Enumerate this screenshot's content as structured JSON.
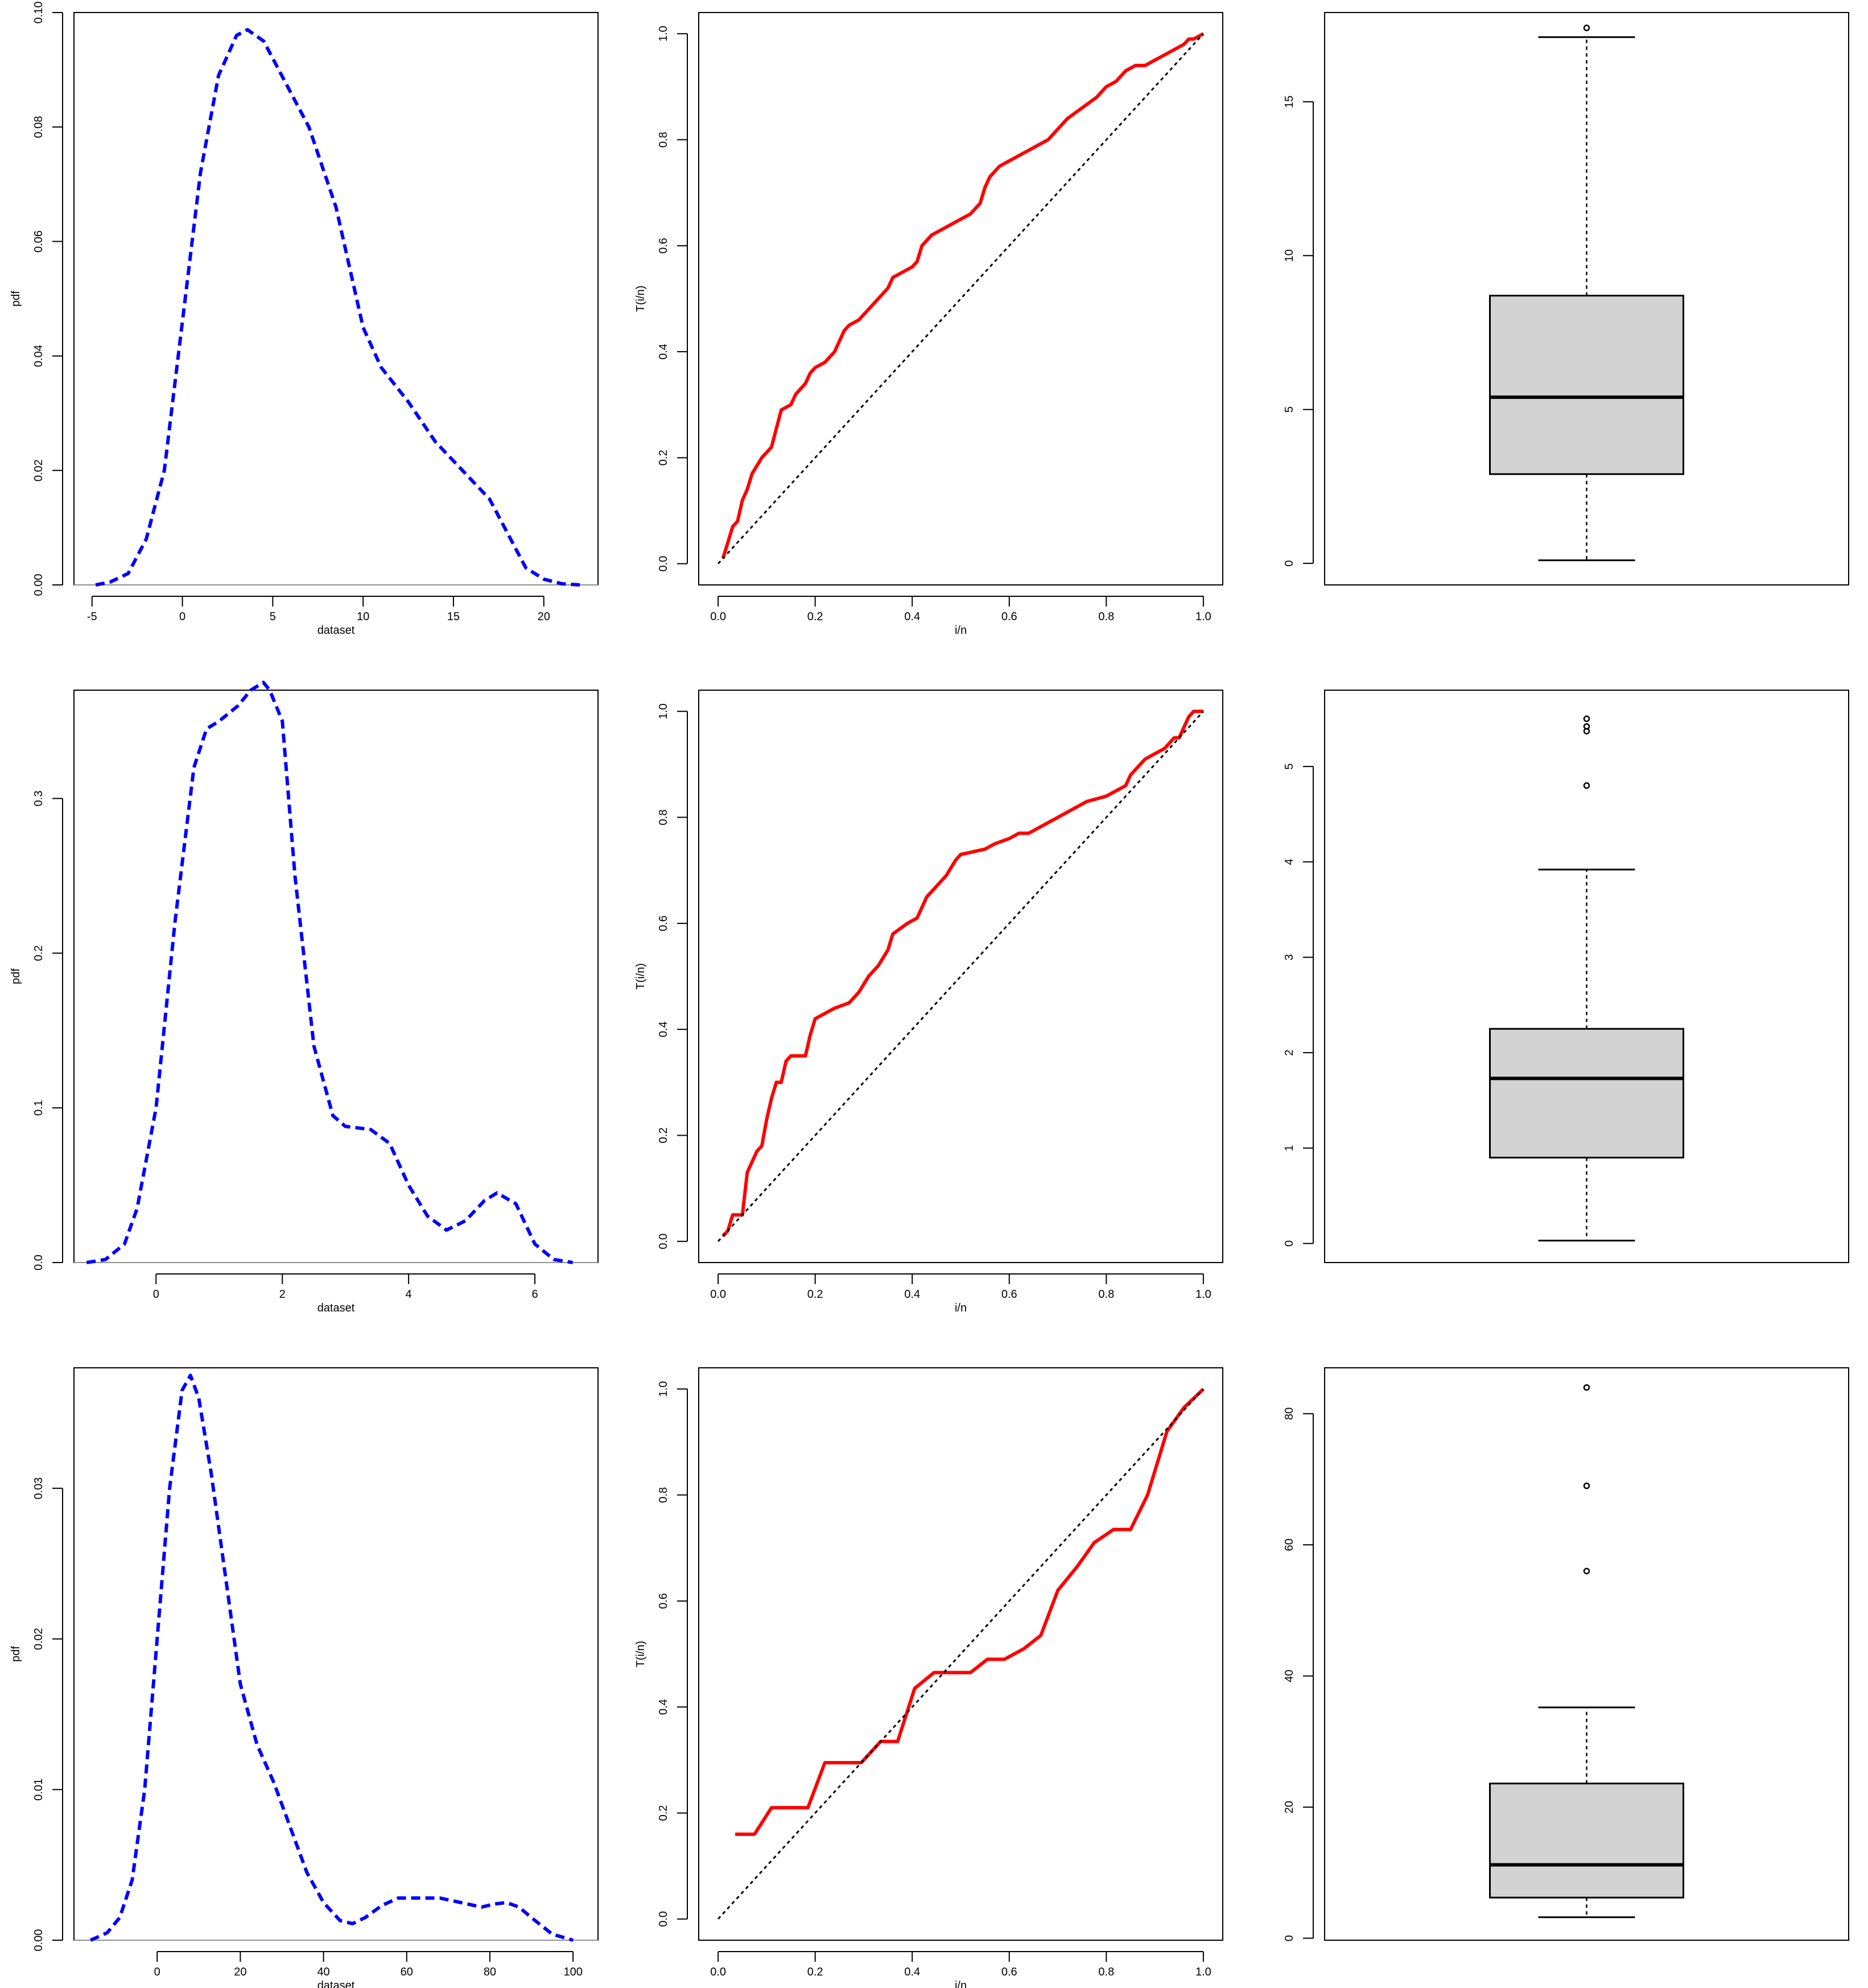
{
  "figure": {
    "layout": "3x3 grid of base-R plots"
  },
  "chart_data": [
    {
      "type": "line",
      "row": 0,
      "col": 0,
      "xlabel": "dataset",
      "ylabel": "pdf",
      "xlim": [
        -6,
        23
      ],
      "ylim": [
        0,
        0.1
      ],
      "xticks": [
        -5,
        0,
        5,
        10,
        15,
        20
      ],
      "xtick_labels": [
        "-5",
        "0",
        "5",
        "10",
        "15",
        "20"
      ],
      "yticks": [
        0,
        0.02,
        0.04,
        0.06,
        0.08,
        0.1
      ],
      "ytick_labels": [
        "0.00",
        "0.02",
        "0.04",
        "0.06",
        "0.08",
        "0.10"
      ],
      "baseline": 0,
      "series": [
        {
          "style": "dashed",
          "color": "#0000ff",
          "x": [
            -4.8,
            -4,
            -3,
            -2,
            -1,
            0,
            1,
            2,
            3,
            3.6,
            4.5,
            5.5,
            7,
            8.5,
            10,
            11,
            12.5,
            14,
            15.5,
            17,
            18,
            19,
            20,
            21,
            22
          ],
          "y": [
            0,
            0.0005,
            0.002,
            0.008,
            0.02,
            0.046,
            0.072,
            0.089,
            0.096,
            0.097,
            0.095,
            0.089,
            0.08,
            0.066,
            0.045,
            0.038,
            0.032,
            0.025,
            0.02,
            0.015,
            0.009,
            0.003,
            0.001,
            0.0002,
            0
          ]
        }
      ]
    },
    {
      "type": "line",
      "row": 0,
      "col": 1,
      "xlabel": "i/n",
      "ylabel": "T(i/n)",
      "xlim": [
        -0.04,
        1.04
      ],
      "ylim": [
        -0.04,
        1.04
      ],
      "xticks": [
        0,
        0.2,
        0.4,
        0.6,
        0.8,
        1.0
      ],
      "xtick_labels": [
        "0.0",
        "0.2",
        "0.4",
        "0.6",
        "0.8",
        "1.0"
      ],
      "yticks": [
        0,
        0.2,
        0.4,
        0.6,
        0.8,
        1.0
      ],
      "ytick_labels": [
        "0.0",
        "0.2",
        "0.4",
        "0.6",
        "0.8",
        "1.0"
      ],
      "series": [
        {
          "style": "solid",
          "color": "#ff0000",
          "x": [
            0.01,
            0.02,
            0.03,
            0.04,
            0.05,
            0.06,
            0.07,
            0.09,
            0.11,
            0.13,
            0.15,
            0.16,
            0.18,
            0.19,
            0.2,
            0.22,
            0.24,
            0.26,
            0.27,
            0.29,
            0.31,
            0.33,
            0.35,
            0.36,
            0.38,
            0.4,
            0.41,
            0.42,
            0.44,
            0.46,
            0.48,
            0.5,
            0.52,
            0.54,
            0.55,
            0.56,
            0.58,
            0.6,
            0.62,
            0.64,
            0.66,
            0.68,
            0.7,
            0.72,
            0.75,
            0.78,
            0.8,
            0.82,
            0.84,
            0.86,
            0.88,
            0.9,
            0.92,
            0.94,
            0.96,
            0.97,
            0.98,
            1.0
          ],
          "y": [
            0.01,
            0.04,
            0.07,
            0.08,
            0.12,
            0.14,
            0.17,
            0.2,
            0.22,
            0.29,
            0.3,
            0.32,
            0.34,
            0.36,
            0.37,
            0.38,
            0.4,
            0.44,
            0.45,
            0.46,
            0.48,
            0.5,
            0.52,
            0.54,
            0.55,
            0.56,
            0.57,
            0.6,
            0.62,
            0.63,
            0.64,
            0.65,
            0.66,
            0.68,
            0.71,
            0.73,
            0.75,
            0.76,
            0.77,
            0.78,
            0.79,
            0.8,
            0.82,
            0.84,
            0.86,
            0.88,
            0.9,
            0.91,
            0.93,
            0.94,
            0.94,
            0.95,
            0.96,
            0.97,
            0.98,
            0.99,
            0.99,
            1.0
          ]
        },
        {
          "style": "dotted",
          "color": "#000000",
          "x": [
            0,
            1
          ],
          "y": [
            0,
            1
          ]
        }
      ]
    },
    {
      "type": "box",
      "row": 0,
      "col": 2,
      "xlabel": "",
      "ylabel": "",
      "ylim": [
        -0.7,
        17.9
      ],
      "yticks": [
        0,
        5,
        10,
        15
      ],
      "ytick_labels": [
        "0",
        "5",
        "10",
        "15"
      ],
      "box": {
        "min": 0.1,
        "q1": 2.9,
        "median": 5.4,
        "q3": 8.7,
        "max": 17.1,
        "outliers": [
          17.4
        ],
        "fill": "#d3d3d3"
      }
    },
    {
      "type": "line",
      "row": 1,
      "col": 0,
      "xlabel": "dataset",
      "ylabel": "pdf",
      "xlim": [
        -1.3,
        7
      ],
      "ylim": [
        0,
        0.37
      ],
      "xticks": [
        0,
        2,
        4,
        6
      ],
      "xtick_labels": [
        "0",
        "2",
        "4",
        "6"
      ],
      "yticks": [
        0,
        0.1,
        0.2,
        0.3
      ],
      "ytick_labels": [
        "0.0",
        "0.1",
        "0.2",
        "0.3"
      ],
      "baseline": 0,
      "series": [
        {
          "style": "dashed",
          "color": "#0000ff",
          "x": [
            -1.1,
            -0.8,
            -0.5,
            -0.3,
            0,
            0.3,
            0.6,
            0.8,
            1,
            1.3,
            1.5,
            1.7,
            1.8,
            2,
            2.2,
            2.5,
            2.8,
            3,
            3.4,
            3.7,
            4,
            4.3,
            4.6,
            4.9,
            5.2,
            5.4,
            5.7,
            6,
            6.3,
            6.6
          ],
          "y": [
            0,
            0.002,
            0.012,
            0.035,
            0.1,
            0.22,
            0.32,
            0.345,
            0.35,
            0.36,
            0.37,
            0.375,
            0.37,
            0.35,
            0.25,
            0.14,
            0.095,
            0.088,
            0.086,
            0.077,
            0.05,
            0.03,
            0.021,
            0.027,
            0.04,
            0.045,
            0.038,
            0.012,
            0.002,
            0
          ]
        }
      ]
    },
    {
      "type": "line",
      "row": 1,
      "col": 1,
      "xlabel": "i/n",
      "ylabel": "T(i/n)",
      "xlim": [
        -0.04,
        1.04
      ],
      "ylim": [
        -0.04,
        1.04
      ],
      "xticks": [
        0,
        0.2,
        0.4,
        0.6,
        0.8,
        1.0
      ],
      "xtick_labels": [
        "0.0",
        "0.2",
        "0.4",
        "0.6",
        "0.8",
        "1.0"
      ],
      "yticks": [
        0,
        0.2,
        0.4,
        0.6,
        0.8,
        1.0
      ],
      "ytick_labels": [
        "0.0",
        "0.2",
        "0.4",
        "0.6",
        "0.8",
        "1.0"
      ],
      "series": [
        {
          "style": "solid",
          "color": "#ff0000",
          "x": [
            0.01,
            0.02,
            0.03,
            0.05,
            0.06,
            0.07,
            0.08,
            0.09,
            0.1,
            0.11,
            0.12,
            0.13,
            0.14,
            0.15,
            0.18,
            0.19,
            0.2,
            0.22,
            0.24,
            0.27,
            0.29,
            0.31,
            0.33,
            0.35,
            0.36,
            0.39,
            0.41,
            0.42,
            0.43,
            0.45,
            0.47,
            0.49,
            0.5,
            0.55,
            0.57,
            0.6,
            0.62,
            0.64,
            0.66,
            0.68,
            0.7,
            0.72,
            0.74,
            0.76,
            0.8,
            0.82,
            0.84,
            0.85,
            0.87,
            0.88,
            0.9,
            0.92,
            0.94,
            0.95,
            0.96,
            0.97,
            0.98,
            1.0
          ],
          "y": [
            0.01,
            0.02,
            0.05,
            0.05,
            0.13,
            0.15,
            0.17,
            0.18,
            0.23,
            0.27,
            0.3,
            0.3,
            0.34,
            0.35,
            0.35,
            0.39,
            0.42,
            0.43,
            0.44,
            0.45,
            0.47,
            0.5,
            0.52,
            0.55,
            0.58,
            0.6,
            0.61,
            0.63,
            0.65,
            0.67,
            0.69,
            0.72,
            0.73,
            0.74,
            0.75,
            0.76,
            0.77,
            0.77,
            0.78,
            0.79,
            0.8,
            0.81,
            0.82,
            0.83,
            0.84,
            0.85,
            0.86,
            0.88,
            0.9,
            0.91,
            0.92,
            0.93,
            0.95,
            0.95,
            0.97,
            0.99,
            1.0,
            1.0
          ]
        },
        {
          "style": "dotted",
          "color": "#000000",
          "x": [
            0,
            1
          ],
          "y": [
            0,
            1
          ]
        }
      ]
    },
    {
      "type": "box",
      "row": 1,
      "col": 2,
      "xlabel": "",
      "ylabel": "",
      "ylim": [
        -0.2,
        5.8
      ],
      "yticks": [
        0,
        1,
        2,
        3,
        4,
        5
      ],
      "ytick_labels": [
        "0",
        "1",
        "2",
        "3",
        "4",
        "5"
      ],
      "box": {
        "min": 0.03,
        "q1": 0.9,
        "median": 1.73,
        "q3": 2.25,
        "max": 3.92,
        "outliers": [
          4.8,
          5.37,
          5.42,
          5.5
        ],
        "fill": "#d3d3d3"
      }
    },
    {
      "type": "line",
      "row": 2,
      "col": 0,
      "xlabel": "dataset",
      "ylabel": "pdf",
      "xlim": [
        -20,
        106
      ],
      "ylim": [
        0,
        0.038
      ],
      "xticks": [
        0,
        20,
        40,
        60,
        80,
        100
      ],
      "xtick_labels": [
        "0",
        "20",
        "40",
        "60",
        "80",
        "100"
      ],
      "yticks": [
        0,
        0.01,
        0.02,
        0.03
      ],
      "ytick_labels": [
        "0.00",
        "0.01",
        "0.02",
        "0.03"
      ],
      "baseline": 0,
      "series": [
        {
          "style": "dashed",
          "color": "#0000ff",
          "x": [
            -16,
            -12,
            -9,
            -6,
            -3,
            0,
            3,
            6,
            8,
            10,
            13,
            17,
            20,
            24,
            28,
            32,
            36,
            40,
            44,
            47,
            50,
            54,
            58,
            63,
            68,
            73,
            78,
            81,
            84,
            87,
            90,
            95,
            100
          ],
          "y": [
            0,
            0.0005,
            0.0015,
            0.004,
            0.01,
            0.02,
            0.03,
            0.0365,
            0.0375,
            0.036,
            0.031,
            0.023,
            0.017,
            0.013,
            0.0105,
            0.0075,
            0.0045,
            0.0025,
            0.0013,
            0.0011,
            0.0015,
            0.0023,
            0.0028,
            0.0028,
            0.0028,
            0.0025,
            0.0022,
            0.0024,
            0.0025,
            0.0022,
            0.0015,
            0.0004,
            0
          ]
        }
      ]
    },
    {
      "type": "line",
      "row": 2,
      "col": 1,
      "xlabel": "i/n",
      "ylabel": "T(i/n)",
      "xlim": [
        -0.04,
        1.04
      ],
      "ylim": [
        -0.04,
        1.04
      ],
      "xticks": [
        0,
        0.2,
        0.4,
        0.6,
        0.8,
        1.0
      ],
      "xtick_labels": [
        "0.0",
        "0.2",
        "0.4",
        "0.6",
        "0.8",
        "1.0"
      ],
      "yticks": [
        0,
        0.2,
        0.4,
        0.6,
        0.8,
        1.0
      ],
      "ytick_labels": [
        "0.0",
        "0.2",
        "0.4",
        "0.6",
        "0.8",
        "1.0"
      ],
      "series": [
        {
          "style": "solid",
          "color": "#ff0000",
          "x": [
            0.035,
            0.075,
            0.11,
            0.185,
            0.22,
            0.295,
            0.335,
            0.37,
            0.405,
            0.445,
            0.52,
            0.555,
            0.59,
            0.63,
            0.665,
            0.7,
            0.74,
            0.775,
            0.815,
            0.85,
            0.885,
            0.925,
            0.96,
            1.0
          ],
          "y": [
            0.16,
            0.16,
            0.21,
            0.21,
            0.295,
            0.295,
            0.335,
            0.335,
            0.435,
            0.465,
            0.465,
            0.49,
            0.49,
            0.51,
            0.535,
            0.62,
            0.665,
            0.71,
            0.735,
            0.735,
            0.8,
            0.92,
            0.965,
            1.0
          ]
        },
        {
          "style": "dotted",
          "color": "#000000",
          "x": [
            0,
            1
          ],
          "y": [
            0,
            1
          ]
        }
      ]
    },
    {
      "type": "box",
      "row": 2,
      "col": 2,
      "xlabel": "",
      "ylabel": "",
      "ylim": [
        -0.3,
        87
      ],
      "yticks": [
        0,
        20,
        40,
        60,
        80
      ],
      "ytick_labels": [
        "0",
        "20",
        "40",
        "60",
        "80"
      ],
      "box": {
        "min": 3.2,
        "q1": 6.2,
        "median": 11.2,
        "q3": 23.6,
        "max": 35.2,
        "outliers": [
          56,
          69,
          84
        ],
        "fill": "#d3d3d3"
      }
    }
  ]
}
